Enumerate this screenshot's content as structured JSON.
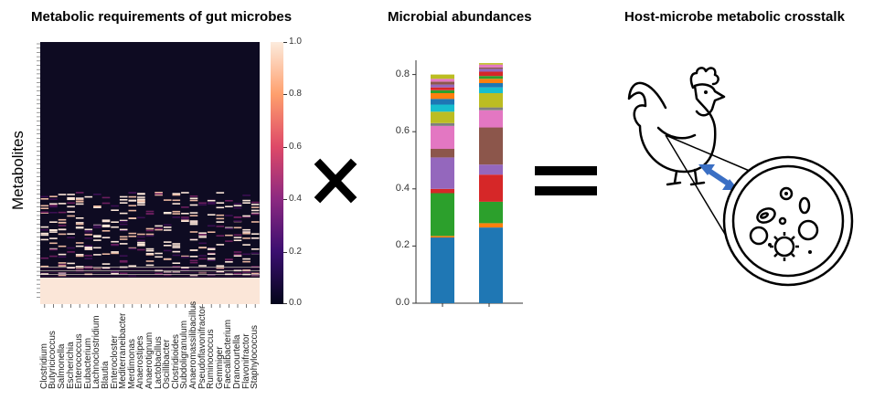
{
  "panels": {
    "heatmap_title": "Metabolic requirements of gut microbes",
    "bar_title": "Microbial abundances",
    "host_title": "Host-microbe metabolic crosstalk"
  },
  "heatmap": {
    "ylabel": "Metabolites",
    "microbes": [
      "Clostridium",
      "Butyricicoccus",
      "Salmonella",
      "Escherichia",
      "Enterococcus",
      "Eubacterium",
      "Lachnoclostridium",
      "Blautia",
      "Enterocloster",
      "Mediterraneibacter",
      "Merdimonas",
      "Anaerostipes",
      "Anaerotignum",
      "Lactobacillus",
      "Oscillibacter",
      "Clostridioides",
      "Subdoligranulum",
      "Anaeromassilibacillus",
      "Pseudoflavonifractor",
      "Ruminococcus",
      "Gemmiger",
      "Faecalibacterium",
      "Drancourtella",
      "Flavonifractor",
      "Staphylococcus"
    ],
    "colorbar_ticks": [
      "1.0",
      "0.8",
      "0.6",
      "0.4",
      "0.2",
      "0.0"
    ]
  },
  "operators": {
    "times": "×",
    "equals": "="
  },
  "chart_data": {
    "type": "bar",
    "stacked": true,
    "categories": [
      "",
      ""
    ],
    "ylim": [
      0,
      0.85
    ],
    "yticks": [
      "0.0",
      "0.2",
      "0.4",
      "0.6",
      "0.8"
    ],
    "series": [
      {
        "color": "#1f77b4",
        "values": [
          0.23,
          0.265
        ]
      },
      {
        "color": "#ff7f0e",
        "values": [
          0.005,
          0.015
        ]
      },
      {
        "color": "#2ca02c",
        "values": [
          0.15,
          0.075
        ]
      },
      {
        "color": "#d62728",
        "values": [
          0.015,
          0.095
        ]
      },
      {
        "color": "#9467bd",
        "values": [
          0.11,
          0.035
        ]
      },
      {
        "color": "#8c564b",
        "values": [
          0.03,
          0.13
        ]
      },
      {
        "color": "#e377c2",
        "values": [
          0.08,
          0.06
        ]
      },
      {
        "color": "#7f7f7f",
        "values": [
          0.01,
          0.01
        ]
      },
      {
        "color": "#bcbd22",
        "values": [
          0.04,
          0.05
        ]
      },
      {
        "color": "#17becf",
        "values": [
          0.025,
          0.02
        ]
      },
      {
        "color": "#1f77b4",
        "values": [
          0.02,
          0.015
        ]
      },
      {
        "color": "#ff7f0e",
        "values": [
          0.02,
          0.015
        ]
      },
      {
        "color": "#2ca02c",
        "values": [
          0.01,
          0.01
        ]
      },
      {
        "color": "#d62728",
        "values": [
          0.01,
          0.015
        ]
      },
      {
        "color": "#9467bd",
        "values": [
          0.01,
          0.01
        ]
      },
      {
        "color": "#8c564b",
        "values": [
          0.01,
          0.005
        ]
      },
      {
        "color": "#e377c2",
        "values": [
          0.01,
          0.01
        ]
      },
      {
        "color": "#bcbd22",
        "values": [
          0.015,
          0.005
        ]
      }
    ]
  },
  "colors": {
    "heatmap_dark": "#0e0b22",
    "heatmap_light": "#fbe6d8",
    "arrow": "#3a6fc4"
  },
  "icons": [
    "chicken-icon",
    "double-arrow-icon",
    "gut-microbes-icon"
  ]
}
